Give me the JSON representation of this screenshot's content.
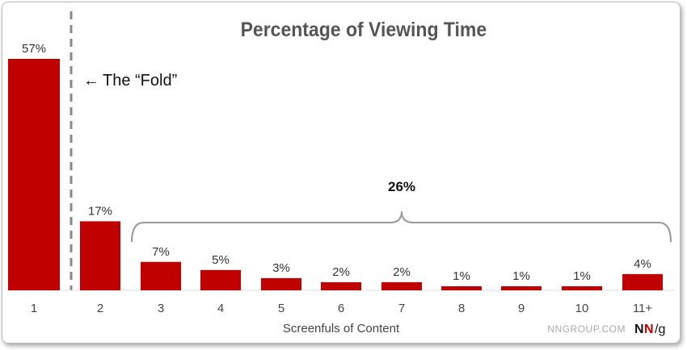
{
  "chart_data": {
    "type": "bar",
    "title": "Percentage of Viewing Time",
    "xlabel": "Screenfuls of Content",
    "ylabel": "",
    "categories": [
      "1",
      "2",
      "3",
      "4",
      "5",
      "6",
      "7",
      "8",
      "9",
      "10",
      "11+"
    ],
    "values": [
      57,
      17,
      7,
      5,
      3,
      2,
      2,
      1,
      1,
      1,
      4
    ],
    "data_labels": [
      "57%",
      "17%",
      "7%",
      "5%",
      "3%",
      "2%",
      "2%",
      "1%",
      "1%",
      "1%",
      "4%"
    ],
    "ylim": [
      0,
      60
    ],
    "grid": false,
    "bar_color": "#c00000",
    "annotations": {
      "fold_label": "The “Fold”",
      "bracket_label": "26%"
    }
  },
  "footer": {
    "site": "NNGROUP.COM",
    "logo": "NN/g"
  }
}
